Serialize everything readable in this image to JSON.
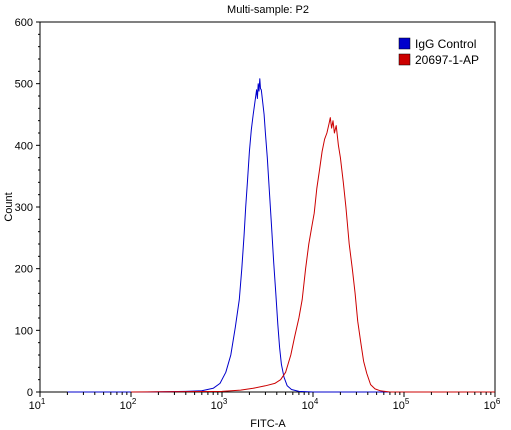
{
  "chart_data": {
    "type": "line",
    "title": "Multi-sample: P2",
    "xlabel": "FITC-A",
    "ylabel": "Count",
    "xscale": "log",
    "xlim": [
      10,
      1000000
    ],
    "ylim": [
      0,
      600
    ],
    "x_ticks": [
      {
        "value": 10,
        "base": "10",
        "exp": "1"
      },
      {
        "value": 100,
        "base": "10",
        "exp": "2"
      },
      {
        "value": 1000,
        "base": "10",
        "exp": "3"
      },
      {
        "value": 10000,
        "base": "10",
        "exp": "4"
      },
      {
        "value": 100000,
        "base": "10",
        "exp": "5"
      },
      {
        "value": 1000000,
        "base": "10",
        "exp": "6"
      }
    ],
    "y_ticks": [
      0,
      100,
      200,
      300,
      400,
      500,
      600
    ],
    "grid": false,
    "legend": {
      "position": "top-right"
    },
    "series": [
      {
        "name": "IgG Control",
        "color": "#0000cc",
        "points": [
          [
            20,
            0
          ],
          [
            150,
            0
          ],
          [
            400,
            1
          ],
          [
            600,
            2
          ],
          [
            800,
            6
          ],
          [
            950,
            14
          ],
          [
            1100,
            32
          ],
          [
            1250,
            60
          ],
          [
            1400,
            105
          ],
          [
            1550,
            150
          ],
          [
            1650,
            200
          ],
          [
            1750,
            255
          ],
          [
            1820,
            300
          ],
          [
            1900,
            340
          ],
          [
            2000,
            390
          ],
          [
            2100,
            425
          ],
          [
            2200,
            450
          ],
          [
            2300,
            470
          ],
          [
            2400,
            490
          ],
          [
            2450,
            476
          ],
          [
            2500,
            500
          ],
          [
            2550,
            488
          ],
          [
            2600,
            508
          ],
          [
            2650,
            492
          ],
          [
            2700,
            490
          ],
          [
            2800,
            470
          ],
          [
            2900,
            450
          ],
          [
            3000,
            420
          ],
          [
            3150,
            380
          ],
          [
            3300,
            330
          ],
          [
            3500,
            270
          ],
          [
            3700,
            210
          ],
          [
            3900,
            160
          ],
          [
            4100,
            110
          ],
          [
            4300,
            72
          ],
          [
            4500,
            45
          ],
          [
            4800,
            24
          ],
          [
            5200,
            10
          ],
          [
            5800,
            4
          ],
          [
            7000,
            1
          ],
          [
            10000,
            0
          ],
          [
            100000,
            0
          ],
          [
            800000,
            0
          ]
        ]
      },
      {
        "name": "20697-1-AP",
        "color": "#cc0000",
        "points": [
          [
            100,
            0
          ],
          [
            1000,
            1
          ],
          [
            1600,
            3
          ],
          [
            2200,
            6
          ],
          [
            3000,
            10
          ],
          [
            3800,
            14
          ],
          [
            4400,
            20
          ],
          [
            5000,
            32
          ],
          [
            5700,
            60
          ],
          [
            6300,
            90
          ],
          [
            7000,
            120
          ],
          [
            7600,
            150
          ],
          [
            8300,
            200
          ],
          [
            9000,
            240
          ],
          [
            9700,
            268
          ],
          [
            10300,
            290
          ],
          [
            11000,
            330
          ],
          [
            11800,
            360
          ],
          [
            12600,
            390
          ],
          [
            13400,
            410
          ],
          [
            14200,
            420
          ],
          [
            15000,
            435
          ],
          [
            15500,
            445
          ],
          [
            16000,
            428
          ],
          [
            16600,
            440
          ],
          [
            17200,
            420
          ],
          [
            18000,
            432
          ],
          [
            19000,
            400
          ],
          [
            20000,
            380
          ],
          [
            21500,
            340
          ],
          [
            23000,
            300
          ],
          [
            25000,
            240
          ],
          [
            27000,
            200
          ],
          [
            29000,
            160
          ],
          [
            31000,
            115
          ],
          [
            33500,
            80
          ],
          [
            36000,
            50
          ],
          [
            39000,
            30
          ],
          [
            43000,
            12
          ],
          [
            48000,
            5
          ],
          [
            55000,
            2
          ],
          [
            70000,
            0
          ],
          [
            1000000,
            0
          ]
        ]
      }
    ]
  }
}
